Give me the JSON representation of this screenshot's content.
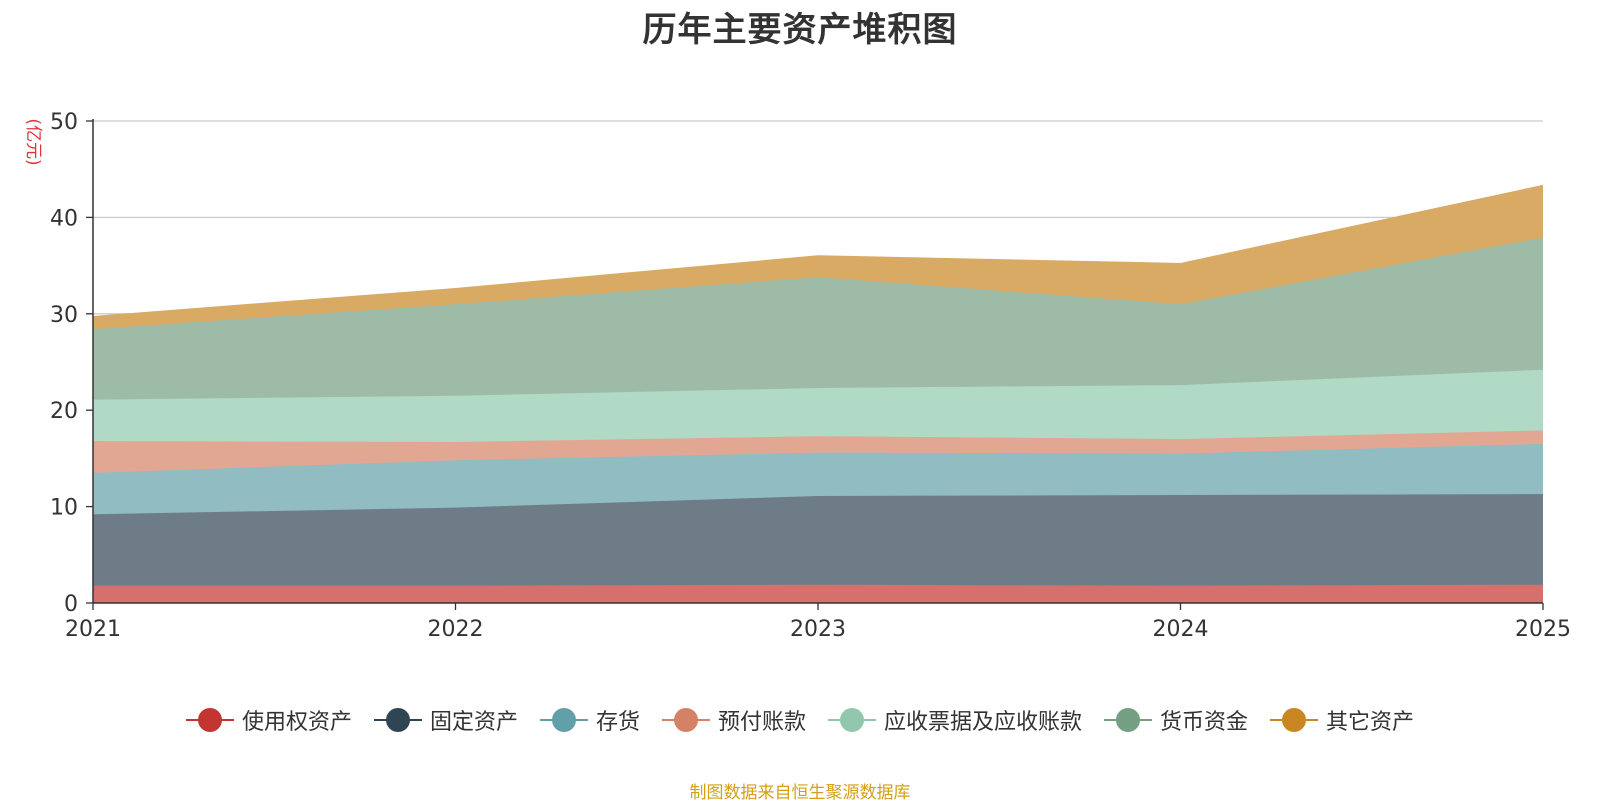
{
  "chart_data": {
    "type": "area",
    "stacked": true,
    "title": "历年主要资产堆积图",
    "ylabel": "(亿元)",
    "xlabel": "",
    "categories": [
      "2021",
      "2022",
      "2023",
      "2024",
      "2025"
    ],
    "y_ticks": [
      0,
      10,
      20,
      30,
      40,
      50
    ],
    "ylim": [
      0,
      50
    ],
    "grid": true,
    "legend_position": "bottom",
    "series": [
      {
        "name": "使用权资产",
        "values": [
          1.8,
          1.8,
          1.9,
          1.8,
          1.9
        ],
        "color": "#c23531",
        "fill": "#d5706c"
      },
      {
        "name": "固定资产",
        "values": [
          7.4,
          8.1,
          9.2,
          9.4,
          9.4
        ],
        "color": "#2f4554",
        "fill": "#6e7c88"
      },
      {
        "name": "存货",
        "values": [
          4.3,
          4.9,
          4.5,
          4.3,
          5.2
        ],
        "color": "#61a0a8",
        "fill": "#91bcc2"
      },
      {
        "name": "预付账款",
        "values": [
          3.3,
          1.9,
          1.7,
          1.5,
          1.4
        ],
        "color": "#d48265",
        "fill": "#e1a793"
      },
      {
        "name": "应收票据及应收账款",
        "values": [
          4.3,
          4.8,
          5.0,
          5.6,
          6.3
        ],
        "color": "#91c7ae",
        "fill": "#b0d9c6"
      },
      {
        "name": "货币资金",
        "values": [
          7.3,
          9.5,
          11.5,
          8.4,
          13.7
        ],
        "color": "#749f83",
        "fill": "#9ebba7"
      },
      {
        "name": "其它资产",
        "values": [
          1.3,
          1.6,
          2.2,
          4.2,
          5.4
        ],
        "color": "#ca8622",
        "fill": "#d9aa64"
      }
    ]
  },
  "source_note": "制图数据来自恒生聚源数据库"
}
